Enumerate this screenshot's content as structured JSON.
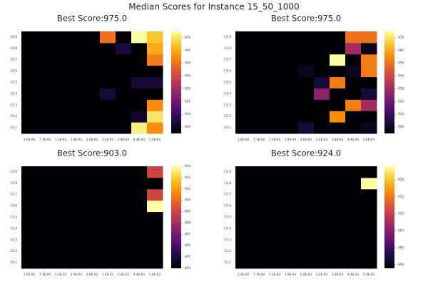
{
  "suptitle": "Median Scores for Instance 15_50_1000",
  "chart_data": [
    {
      "type": "heatmap",
      "title": "Best Score:975.0",
      "x_tick_labels": [
        "1.0E-04",
        "7.1E-04",
        "1.3E-03",
        "1.9E-03",
        "2.6E-03",
        "3.2E-03",
        "3.8E-03",
        "4.4E-03",
        "5.0E-03"
      ],
      "y_tick_labels": [
        "C0.1",
        "C0.2",
        "C0.3",
        "C0.4",
        "C0.5",
        "C0.6",
        "C0.7",
        "C0.8",
        "C0.9"
      ],
      "colorbar_ticks": [
        900,
        910,
        920,
        930,
        940,
        950,
        960,
        970
      ],
      "zlim": [
        895,
        975
      ],
      "values": [
        [
          895,
          895,
          895,
          895,
          895,
          895,
          895,
          972,
          955
        ],
        [
          895,
          895,
          895,
          895,
          895,
          895,
          895,
          901,
          970
        ],
        [
          895,
          895,
          895,
          895,
          895,
          895,
          895,
          895,
          955
        ],
        [
          895,
          895,
          895,
          895,
          895,
          903,
          895,
          895,
          895
        ],
        [
          895,
          895,
          895,
          895,
          895,
          895,
          895,
          903,
          903
        ],
        [
          895,
          895,
          895,
          895,
          895,
          895,
          895,
          895,
          895
        ],
        [
          895,
          895,
          895,
          895,
          895,
          895,
          895,
          895,
          952
        ],
        [
          895,
          895,
          895,
          895,
          895,
          895,
          904,
          895,
          960
        ],
        [
          895,
          895,
          895,
          895,
          895,
          950,
          895,
          975,
          965
        ]
      ]
    },
    {
      "type": "heatmap",
      "title": "Best Score:975.0",
      "x_tick_labels": [
        "1.0E-04",
        "7.1E-04",
        "1.3E-03",
        "1.9E-03",
        "2.6E-03",
        "3.2E-03",
        "3.8E-03",
        "4.4E-03",
        "5.0E-03"
      ],
      "y_tick_labels": [
        "C0.1",
        "C0.2",
        "C0.3",
        "C0.4",
        "C0.5",
        "C0.6",
        "C0.7",
        "C0.8",
        "C0.9"
      ],
      "colorbar_ticks": [
        900,
        910,
        920,
        930,
        940,
        950,
        960,
        970
      ],
      "zlim": [
        895,
        975
      ],
      "values": [
        [
          895,
          895,
          895,
          895,
          903,
          895,
          895,
          895,
          899
        ],
        [
          895,
          895,
          895,
          895,
          895,
          895,
          955,
          895,
          895
        ],
        [
          895,
          895,
          895,
          895,
          895,
          895,
          895,
          952,
          930
        ],
        [
          895,
          895,
          895,
          895,
          895,
          925,
          895,
          895,
          903
        ],
        [
          895,
          895,
          895,
          895,
          895,
          903,
          952,
          895,
          895
        ],
        [
          895,
          895,
          895,
          895,
          899,
          895,
          895,
          899,
          952
        ],
        [
          895,
          895,
          895,
          895,
          895,
          895,
          975,
          895,
          952
        ],
        [
          895,
          895,
          895,
          895,
          895,
          895,
          895,
          930,
          898
        ],
        [
          895,
          895,
          895,
          895,
          895,
          895,
          895,
          950,
          950
        ]
      ]
    },
    {
      "type": "heatmap",
      "title": "Best Score:903.0",
      "x_tick_labels": [
        "1.0E-04",
        "7.1E-04",
        "1.3E-03",
        "1.9E-03",
        "2.6E-03",
        "3.2E-03",
        "3.8E-03",
        "4.4E-03",
        "5.0E-03"
      ],
      "y_tick_labels": [
        "C0.1",
        "C0.2",
        "C0.3",
        "C0.4",
        "C0.5",
        "C0.6",
        "C0.7",
        "C0.8",
        "C0.9"
      ],
      "colorbar_ticks": [
        894,
        895,
        896,
        897,
        898,
        899,
        900,
        901,
        902,
        903
      ],
      "zlim": [
        894,
        903
      ],
      "values": [
        [
          894,
          894,
          894,
          894,
          894,
          894,
          894,
          894,
          894
        ],
        [
          894,
          894,
          894,
          894,
          894,
          894,
          894,
          894,
          894
        ],
        [
          894,
          894,
          894,
          894,
          894,
          894,
          894,
          894,
          894
        ],
        [
          894,
          894,
          894,
          894,
          894,
          894,
          894,
          894,
          894
        ],
        [
          894,
          894,
          894,
          894,
          894,
          894,
          894,
          894,
          894
        ],
        [
          894,
          894,
          894,
          894,
          894,
          894,
          894,
          894,
          903
        ],
        [
          894,
          894,
          894,
          894,
          894,
          894,
          894,
          894,
          899
        ],
        [
          894,
          894,
          894,
          894,
          894,
          894,
          894,
          894,
          894
        ],
        [
          894,
          894,
          894,
          894,
          894,
          894,
          894,
          894,
          899
        ]
      ]
    },
    {
      "type": "heatmap",
      "title": "Best Score:924.0",
      "x_tick_labels": [
        "1.0E-04",
        "7.1E-04",
        "1.3E-03",
        "1.9E-03",
        "2.6E-03",
        "3.2E-03",
        "3.8E-03",
        "4.4E-03",
        "5.0E-03"
      ],
      "y_tick_labels": [
        "C0.1",
        "C0.2",
        "C0.3",
        "C0.4",
        "C0.5",
        "C0.6",
        "C0.7",
        "C0.8",
        "C0.9"
      ],
      "colorbar_ticks": [
        895,
        900,
        905,
        910,
        915,
        920
      ],
      "zlim": [
        894,
        924
      ],
      "values": [
        [
          894,
          894,
          894,
          894,
          894,
          894,
          894,
          894,
          894
        ],
        [
          894,
          894,
          894,
          894,
          894,
          894,
          894,
          894,
          894
        ],
        [
          894,
          894,
          894,
          894,
          894,
          894,
          894,
          894,
          894
        ],
        [
          894,
          894,
          894,
          894,
          894,
          894,
          894,
          894,
          894
        ],
        [
          894,
          894,
          894,
          894,
          894,
          894,
          894,
          894,
          894
        ],
        [
          894,
          894,
          894,
          894,
          894,
          894,
          894,
          894,
          894
        ],
        [
          894,
          894,
          894,
          894,
          894,
          894,
          894,
          894,
          894
        ],
        [
          894,
          894,
          894,
          894,
          894,
          894,
          894,
          894,
          924
        ],
        [
          894,
          894,
          894,
          894,
          894,
          894,
          894,
          894,
          894
        ]
      ]
    }
  ]
}
